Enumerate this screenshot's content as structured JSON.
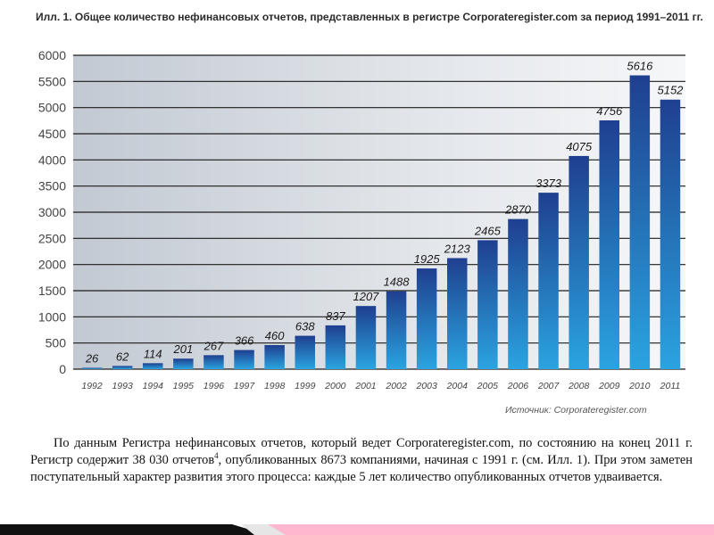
{
  "title": "Илл. 1. Общее количество нефинансовых отчетов, представленных в регистре Corporateregister.com за период 1991–2011 гг.",
  "source": "Источник: Corporateregister.com",
  "body": {
    "text_before_note": "По данным Регистра нефинансовых отчетов, который ведет Corporateregister.com, по состоянию на конец 2011 г. Регистр содержит 38 030 отчетов",
    "note_ref": "4",
    "text_after_note": ", опубликованных 8673 компаниями, начиная с 1991 г. (см. Илл. 1). При этом заметен поступательный характер развития этого процесса: каждые 5 лет количество опубликованных отчетов удваивается."
  },
  "colors": {
    "bar_top": "#1f3f8f",
    "bar_bottom": "#2aa4e0",
    "grid": "#1c1c1c",
    "plot_bg": "#cfd5dc"
  },
  "chart_data": {
    "type": "bar",
    "categories": [
      "1992",
      "1993",
      "1994",
      "1995",
      "1996",
      "1997",
      "1998",
      "1999",
      "2000",
      "2001",
      "2002",
      "2003",
      "2004",
      "2005",
      "2006",
      "2007",
      "2008",
      "2009",
      "2010",
      "2011"
    ],
    "values": [
      26,
      62,
      114,
      201,
      267,
      366,
      460,
      638,
      837,
      1207,
      1488,
      1925,
      2123,
      2465,
      2870,
      3373,
      4075,
      4756,
      5616,
      5152
    ],
    "yticks": [
      "0",
      "500",
      "1000",
      "1500",
      "2000",
      "2500",
      "3000",
      "3500",
      "4000",
      "4500",
      "5000",
      "5500",
      "6000"
    ],
    "ylim": [
      0,
      6000
    ],
    "title": "Илл. 1. Общее количество нефинансовых отчетов, представленных в регистре Corporateregister.com за период 1991–2011 гг.",
    "xlabel": "",
    "ylabel": "",
    "grid": true
  }
}
